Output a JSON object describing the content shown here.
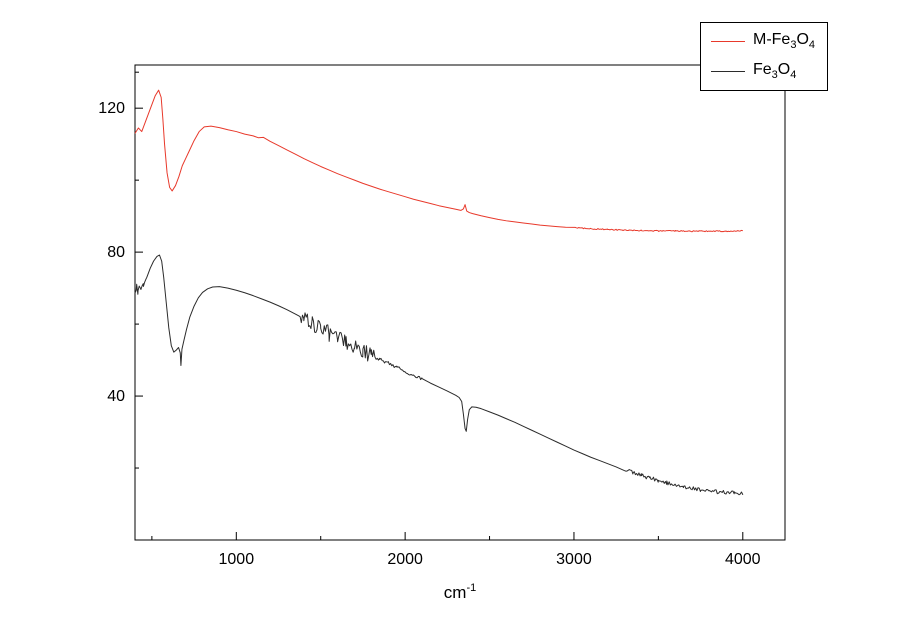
{
  "figure": {
    "background": "#ffffff",
    "frame_color": "#000000",
    "text_color": "#000000"
  },
  "chart_data": {
    "type": "line",
    "title": "",
    "xlabel_segments": [
      {
        "t": "cm"
      },
      {
        "t": "-1",
        "sup": true
      }
    ],
    "ylabel": "",
    "xlim": [
      400,
      4250
    ],
    "ylim": [
      0,
      132
    ],
    "x_ticks": [
      1000,
      2000,
      3000,
      4000
    ],
    "x_minor_ticks": [
      500,
      1500,
      2500,
      3500
    ],
    "y_ticks": [
      40,
      80,
      120
    ],
    "y_minor_ticks": [
      20,
      60,
      100,
      130
    ],
    "grid": false,
    "legend_position": "top-right",
    "series": [
      {
        "name": "M-Fe3O4",
        "name_segments": [
          {
            "t": "M-Fe"
          },
          {
            "t": "3",
            "sub": true
          },
          {
            "t": "O"
          },
          {
            "t": "4",
            "sub": true
          }
        ],
        "color": "#e8392b",
        "noise": [
          {
            "from": 3000,
            "to": 4000,
            "amp": 0.15
          }
        ],
        "points": [
          [
            400,
            113
          ],
          [
            420,
            114.5
          ],
          [
            440,
            113.5
          ],
          [
            460,
            116
          ],
          [
            480,
            118.5
          ],
          [
            500,
            121
          ],
          [
            520,
            123.5
          ],
          [
            540,
            125
          ],
          [
            555,
            123
          ],
          [
            565,
            117
          ],
          [
            575,
            110
          ],
          [
            590,
            102
          ],
          [
            605,
            98
          ],
          [
            620,
            97
          ],
          [
            640,
            98.5
          ],
          [
            660,
            101
          ],
          [
            680,
            104
          ],
          [
            700,
            106
          ],
          [
            720,
            108
          ],
          [
            750,
            111
          ],
          [
            780,
            113.5
          ],
          [
            810,
            114.8
          ],
          [
            850,
            115
          ],
          [
            900,
            114.6
          ],
          [
            950,
            114
          ],
          [
            1000,
            113.5
          ],
          [
            1050,
            112.8
          ],
          [
            1100,
            112.3
          ],
          [
            1130,
            111.8
          ],
          [
            1160,
            111.9
          ],
          [
            1200,
            110.8
          ],
          [
            1250,
            109.6
          ],
          [
            1300,
            108.4
          ],
          [
            1350,
            107.2
          ],
          [
            1400,
            106
          ],
          [
            1450,
            104.9
          ],
          [
            1500,
            103.8
          ],
          [
            1550,
            102.8
          ],
          [
            1600,
            101.8
          ],
          [
            1650,
            100.9
          ],
          [
            1700,
            100
          ],
          [
            1750,
            99.1
          ],
          [
            1800,
            98.3
          ],
          [
            1850,
            97.5
          ],
          [
            1900,
            96.8
          ],
          [
            1950,
            96.1
          ],
          [
            2000,
            95.4
          ],
          [
            2050,
            94.7
          ],
          [
            2100,
            94.1
          ],
          [
            2150,
            93.5
          ],
          [
            2200,
            92.9
          ],
          [
            2250,
            92.4
          ],
          [
            2300,
            91.9
          ],
          [
            2330,
            91.6
          ],
          [
            2345,
            92
          ],
          [
            2355,
            93.2
          ],
          [
            2365,
            91.4
          ],
          [
            2380,
            91
          ],
          [
            2400,
            90.7
          ],
          [
            2450,
            90.1
          ],
          [
            2500,
            89.6
          ],
          [
            2550,
            89.1
          ],
          [
            2600,
            88.7
          ],
          [
            2650,
            88.4
          ],
          [
            2700,
            88.1
          ],
          [
            2750,
            87.8
          ],
          [
            2800,
            87.5
          ],
          [
            2850,
            87.3
          ],
          [
            2900,
            87.1
          ],
          [
            2950,
            86.9
          ],
          [
            3000,
            86.8
          ],
          [
            3100,
            86.5
          ],
          [
            3200,
            86.3
          ],
          [
            3300,
            86.1
          ],
          [
            3400,
            86
          ],
          [
            3500,
            85.9
          ],
          [
            3600,
            85.9
          ],
          [
            3700,
            85.8
          ],
          [
            3800,
            85.8
          ],
          [
            3900,
            85.8
          ],
          [
            4000,
            85.9
          ]
        ]
      },
      {
        "name": "Fe3O4",
        "name_segments": [
          {
            "t": "Fe"
          },
          {
            "t": "3",
            "sub": true
          },
          {
            "t": "O"
          },
          {
            "t": "4",
            "sub": true
          }
        ],
        "color": "#2b2b2b",
        "noise": [
          {
            "from": 400,
            "to": 460,
            "amp": 0.8
          },
          {
            "from": 1380,
            "to": 1820,
            "amp": 2.2
          },
          {
            "from": 1820,
            "to": 2100,
            "amp": 0.5
          },
          {
            "from": 3300,
            "to": 4000,
            "amp": 0.55
          }
        ],
        "points": [
          [
            400,
            69
          ],
          [
            410,
            70.5
          ],
          [
            418,
            68.5
          ],
          [
            425,
            70
          ],
          [
            435,
            69.5
          ],
          [
            450,
            71
          ],
          [
            470,
            73
          ],
          [
            490,
            75.5
          ],
          [
            510,
            77.5
          ],
          [
            530,
            78.8
          ],
          [
            545,
            79.2
          ],
          [
            558,
            77.5
          ],
          [
            570,
            73
          ],
          [
            585,
            66
          ],
          [
            600,
            59
          ],
          [
            615,
            54
          ],
          [
            630,
            52.2
          ],
          [
            645,
            52.8
          ],
          [
            658,
            53.5
          ],
          [
            668,
            52
          ],
          [
            672,
            48.5
          ],
          [
            678,
            53
          ],
          [
            690,
            55.5
          ],
          [
            705,
            58.5
          ],
          [
            725,
            62
          ],
          [
            750,
            65
          ],
          [
            775,
            67.3
          ],
          [
            800,
            68.8
          ],
          [
            830,
            69.8
          ],
          [
            860,
            70.3
          ],
          [
            900,
            70.4
          ],
          [
            950,
            70
          ],
          [
            1000,
            69.4
          ],
          [
            1050,
            68.7
          ],
          [
            1100,
            67.9
          ],
          [
            1150,
            67
          ],
          [
            1200,
            66.1
          ],
          [
            1250,
            65.1
          ],
          [
            1300,
            64
          ],
          [
            1350,
            62.8
          ],
          [
            1400,
            61.5
          ],
          [
            1450,
            60.2
          ],
          [
            1500,
            58.8
          ],
          [
            1550,
            57.4
          ],
          [
            1600,
            56.1
          ],
          [
            1650,
            54.9
          ],
          [
            1700,
            53.7
          ],
          [
            1750,
            52.5
          ],
          [
            1800,
            51.3
          ],
          [
            1850,
            50.2
          ],
          [
            1900,
            49.1
          ],
          [
            1950,
            48
          ],
          [
            2000,
            46.9
          ],
          [
            2050,
            45.8
          ],
          [
            2100,
            44.7
          ],
          [
            2150,
            43.6
          ],
          [
            2200,
            42.5
          ],
          [
            2250,
            41.4
          ],
          [
            2300,
            40.2
          ],
          [
            2320,
            39.6
          ],
          [
            2335,
            38.5
          ],
          [
            2345,
            35
          ],
          [
            2355,
            31
          ],
          [
            2362,
            30.2
          ],
          [
            2370,
            33.5
          ],
          [
            2380,
            36.2
          ],
          [
            2395,
            37
          ],
          [
            2420,
            36.9
          ],
          [
            2450,
            36.5
          ],
          [
            2500,
            35.6
          ],
          [
            2550,
            34.7
          ],
          [
            2600,
            33.7
          ],
          [
            2650,
            32.7
          ],
          [
            2700,
            31.6
          ],
          [
            2750,
            30.5
          ],
          [
            2800,
            29.4
          ],
          [
            2850,
            28.3
          ],
          [
            2900,
            27.2
          ],
          [
            2950,
            26.1
          ],
          [
            3000,
            25
          ],
          [
            3050,
            24
          ],
          [
            3100,
            23
          ],
          [
            3150,
            22.1
          ],
          [
            3200,
            21.2
          ],
          [
            3250,
            20.3
          ],
          [
            3300,
            19.5
          ],
          [
            3350,
            18.7
          ],
          [
            3400,
            17.9
          ],
          [
            3450,
            17.2
          ],
          [
            3500,
            16.5
          ],
          [
            3550,
            15.9
          ],
          [
            3600,
            15.3
          ],
          [
            3650,
            14.8
          ],
          [
            3700,
            14.4
          ],
          [
            3750,
            14
          ],
          [
            3800,
            13.7
          ],
          [
            3850,
            13.4
          ],
          [
            3900,
            13.2
          ],
          [
            3950,
            13.1
          ],
          [
            4000,
            13
          ]
        ]
      }
    ]
  }
}
